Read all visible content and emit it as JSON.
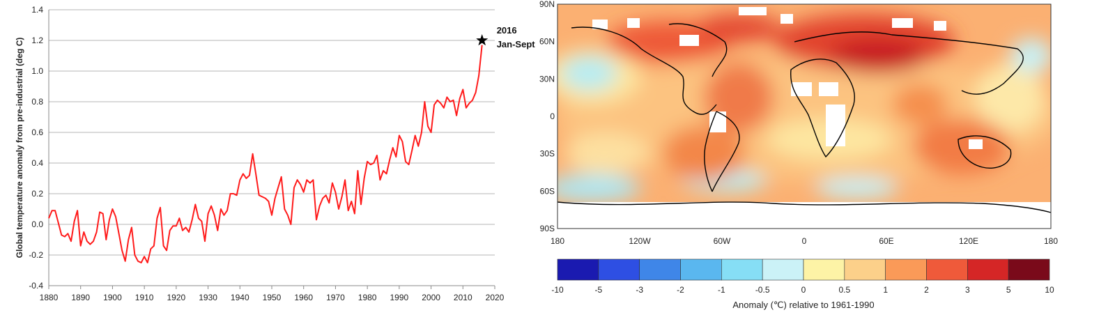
{
  "chart_data": [
    {
      "type": "line",
      "title": "",
      "xlabel": "",
      "ylabel": "Global temperature anomaly from pre-industrial (deg C)",
      "xlim": [
        1880,
        2020
      ],
      "ylim": [
        -0.4,
        1.4
      ],
      "grid": true,
      "x_ticks": [
        "1880",
        "1890",
        "1900",
        "1910",
        "1920",
        "1930",
        "1940",
        "1950",
        "1960",
        "1970",
        "1980",
        "1990",
        "2000",
        "2010",
        "2020"
      ],
      "y_ticks": [
        "-0.4",
        "-0.2",
        "0.0",
        "0.2",
        "0.4",
        "0.6",
        "0.8",
        "1.0",
        "1.2",
        "1.4"
      ],
      "series": [
        {
          "name": "Global temperature anomaly",
          "color": "#ff1a1a",
          "x": [
            1880,
            1881,
            1882,
            1883,
            1884,
            1885,
            1886,
            1887,
            1888,
            1889,
            1890,
            1891,
            1892,
            1893,
            1894,
            1895,
            1896,
            1897,
            1898,
            1899,
            1900,
            1901,
            1902,
            1903,
            1904,
            1905,
            1906,
            1907,
            1908,
            1909,
            1910,
            1911,
            1912,
            1913,
            1914,
            1915,
            1916,
            1917,
            1918,
            1919,
            1920,
            1921,
            1922,
            1923,
            1924,
            1925,
            1926,
            1927,
            1928,
            1929,
            1930,
            1931,
            1932,
            1933,
            1934,
            1935,
            1936,
            1937,
            1938,
            1939,
            1940,
            1941,
            1942,
            1943,
            1944,
            1945,
            1946,
            1947,
            1948,
            1949,
            1950,
            1951,
            1952,
            1953,
            1954,
            1955,
            1956,
            1957,
            1958,
            1959,
            1960,
            1961,
            1962,
            1963,
            1964,
            1965,
            1966,
            1967,
            1968,
            1969,
            1970,
            1971,
            1972,
            1973,
            1974,
            1975,
            1976,
            1977,
            1978,
            1979,
            1980,
            1981,
            1982,
            1983,
            1984,
            1985,
            1986,
            1987,
            1988,
            1989,
            1990,
            1991,
            1992,
            1993,
            1994,
            1995,
            1996,
            1997,
            1998,
            1999,
            2000,
            2001,
            2002,
            2003,
            2004,
            2005,
            2006,
            2007,
            2008,
            2009,
            2010,
            2011,
            2012,
            2013,
            2014,
            2015,
            2016
          ],
          "values": [
            0.04,
            0.09,
            0.09,
            0.01,
            -0.07,
            -0.08,
            -0.06,
            -0.11,
            0.02,
            0.09,
            -0.14,
            -0.05,
            -0.11,
            -0.13,
            -0.11,
            -0.05,
            0.08,
            0.07,
            -0.1,
            0.03,
            0.1,
            0.05,
            -0.06,
            -0.17,
            -0.24,
            -0.1,
            -0.02,
            -0.2,
            -0.24,
            -0.25,
            -0.21,
            -0.25,
            -0.16,
            -0.14,
            0.04,
            0.11,
            -0.14,
            -0.17,
            -0.04,
            -0.01,
            -0.01,
            0.04,
            -0.04,
            -0.02,
            -0.05,
            0.03,
            0.13,
            0.04,
            0.02,
            -0.11,
            0.07,
            0.12,
            0.06,
            -0.04,
            0.1,
            0.06,
            0.09,
            0.2,
            0.2,
            0.19,
            0.29,
            0.33,
            0.3,
            0.32,
            0.46,
            0.33,
            0.19,
            0.18,
            0.17,
            0.15,
            0.06,
            0.17,
            0.24,
            0.31,
            0.1,
            0.06,
            0.0,
            0.24,
            0.29,
            0.26,
            0.21,
            0.29,
            0.27,
            0.29,
            0.03,
            0.12,
            0.17,
            0.19,
            0.14,
            0.27,
            0.21,
            0.1,
            0.18,
            0.29,
            0.09,
            0.15,
            0.07,
            0.35,
            0.13,
            0.3,
            0.41,
            0.39,
            0.4,
            0.45,
            0.29,
            0.35,
            0.33,
            0.42,
            0.5,
            0.44,
            0.58,
            0.54,
            0.41,
            0.39,
            0.48,
            0.58,
            0.51,
            0.6,
            0.8,
            0.64,
            0.6,
            0.78,
            0.81,
            0.79,
            0.76,
            0.83,
            0.8,
            0.81,
            0.71,
            0.82,
            0.88,
            0.76,
            0.79,
            0.81,
            0.86,
            0.97,
            1.17
          ]
        }
      ],
      "annotations": [
        {
          "x": 2016,
          "y": 1.2,
          "marker": "star",
          "line1": "2016",
          "line2": "Jan-Sept"
        }
      ]
    },
    {
      "type": "heatmap",
      "title": "",
      "subject": "Global surface temperature anomaly map, 2016 Jan-Sept",
      "x_ticks": [
        "180",
        "120W",
        "60W",
        "0",
        "60E",
        "120E",
        "180"
      ],
      "y_ticks": [
        "90N",
        "60N",
        "30N",
        "0",
        "30S",
        "60S",
        "90S"
      ],
      "colorbar": {
        "title": "Anomaly (℃) relative to 1961-1990",
        "ticks": [
          "-10",
          "-5",
          "-3",
          "-2",
          "-1",
          "-0.5",
          "0",
          "0.5",
          "1",
          "2",
          "3",
          "5",
          "10"
        ],
        "colors": [
          "#1a1ab0",
          "#2e4fe3",
          "#3f86e8",
          "#5ab7ef",
          "#86def5",
          "#cbf2f7",
          "#fdf3a6",
          "#fcd08a",
          "#fa9a58",
          "#ef5a3a",
          "#d52626",
          "#7a0a1a"
        ]
      }
    }
  ]
}
